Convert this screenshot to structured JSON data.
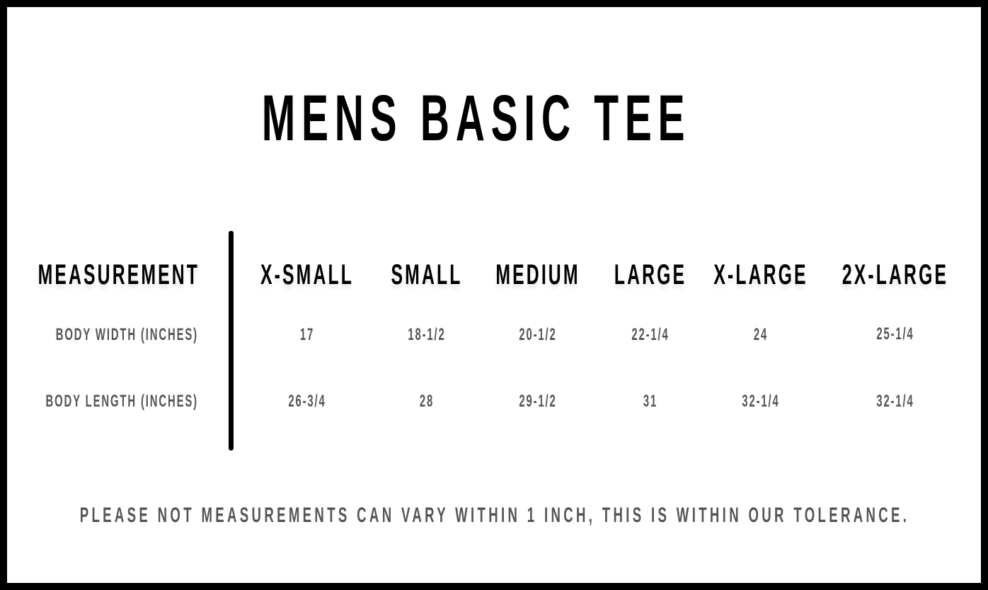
{
  "title": "MENS BASIC TEE",
  "table": {
    "header": [
      "MEASUREMENT",
      "X-SMALL",
      "SMALL",
      "MEDIUM",
      "LARGE",
      "X-LARGE",
      "2X-LARGE"
    ],
    "rows": [
      {
        "label": "BODY WIDTH (INCHES)",
        "values": [
          "17",
          "18-1/2",
          "20-1/2",
          "22-1/4",
          "24",
          "25-1/4"
        ]
      },
      {
        "label": "BODY LENGTH (INCHES)",
        "values": [
          "26-3/4",
          "28",
          "29-1/2",
          "31",
          "32-1/4",
          "32-1/4"
        ]
      }
    ]
  },
  "footnote": "PLEASE NOT MEASUREMENTS CAN VARY WITHIN 1 INCH, THIS IS WITHIN OUR TOLERANCE."
}
